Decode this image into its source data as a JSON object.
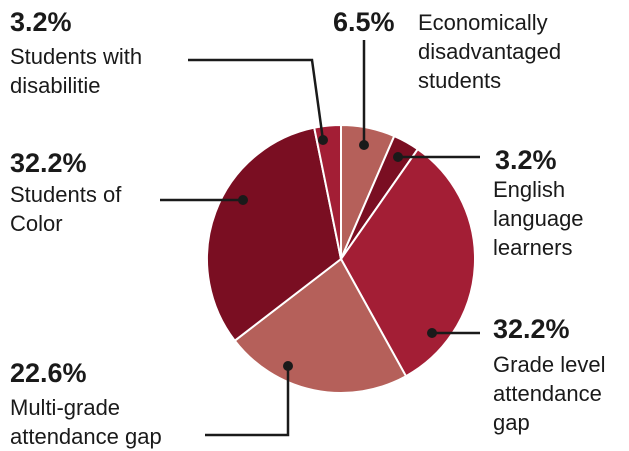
{
  "chart_data": {
    "type": "pie",
    "categories": [
      "Economically disadvantaged students",
      "English language learners",
      "Grade level attendance gap",
      "Multi-grade attendance gap",
      "Students of Color",
      "Students with disabilitie"
    ],
    "values": [
      6.5,
      3.2,
      32.2,
      22.6,
      32.2,
      3.2
    ],
    "value_labels": [
      "6.5%",
      "3.2%",
      "32.2%",
      "22.6%",
      "32.2%",
      "3.2%"
    ],
    "colors": [
      "#b5605a",
      "#7a0e22",
      "#a31e35",
      "#b5605a",
      "#7a0e22",
      "#a31e35"
    ]
  }
}
